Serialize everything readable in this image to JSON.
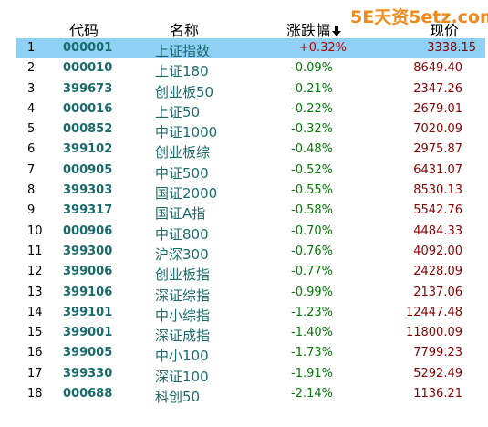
{
  "watermark": "5E天资5etz.com",
  "columns": {
    "code": "代码",
    "name": "名称",
    "change": "涨跌幅",
    "price": "现价"
  },
  "sort_icon": "arrow-down-icon",
  "colors": {
    "selected_row": "#8fd0f5",
    "code_text": "#1a6b6b",
    "negative": "#0a7a0a",
    "positive": "#c00000",
    "price": "#8b0000",
    "watermark": "#f08a1c"
  },
  "rows": [
    {
      "idx": "1",
      "code": "000001",
      "name": "上证指数",
      "change": "+0.32%",
      "price": "3338.15",
      "selected": true
    },
    {
      "idx": "2",
      "code": "000010",
      "name": "上证180",
      "change": "-0.09%",
      "price": "8649.40"
    },
    {
      "idx": "3",
      "code": "399673",
      "name": "创业板50",
      "change": "-0.21%",
      "price": "2347.26"
    },
    {
      "idx": "4",
      "code": "000016",
      "name": "上证50",
      "change": "-0.22%",
      "price": "2679.01"
    },
    {
      "idx": "5",
      "code": "000852",
      "name": "中证1000",
      "change": "-0.32%",
      "price": "7020.09"
    },
    {
      "idx": "6",
      "code": "399102",
      "name": "创业板综",
      "change": "-0.48%",
      "price": "2975.87"
    },
    {
      "idx": "7",
      "code": "000905",
      "name": "中证500",
      "change": "-0.52%",
      "price": "6431.07"
    },
    {
      "idx": "8",
      "code": "399303",
      "name": "国证2000",
      "change": "-0.55%",
      "price": "8530.13"
    },
    {
      "idx": "9",
      "code": "399317",
      "name": "国证A指",
      "change": "-0.58%",
      "price": "5542.76"
    },
    {
      "idx": "10",
      "code": "000906",
      "name": "中证800",
      "change": "-0.70%",
      "price": "4484.33"
    },
    {
      "idx": "11",
      "code": "399300",
      "name": "沪深300",
      "change": "-0.76%",
      "price": "4092.00"
    },
    {
      "idx": "12",
      "code": "399006",
      "name": "创业板指",
      "change": "-0.77%",
      "price": "2428.09"
    },
    {
      "idx": "13",
      "code": "399106",
      "name": "深证综指",
      "change": "-0.99%",
      "price": "2137.06"
    },
    {
      "idx": "14",
      "code": "399101",
      "name": "中小综指",
      "change": "-1.23%",
      "price": "12447.48"
    },
    {
      "idx": "15",
      "code": "399001",
      "name": "深证成指",
      "change": "-1.40%",
      "price": "11800.09"
    },
    {
      "idx": "16",
      "code": "399005",
      "name": "中小100",
      "change": "-1.73%",
      "price": "7799.23"
    },
    {
      "idx": "17",
      "code": "399330",
      "name": "深证100",
      "change": "-1.91%",
      "price": "5292.49"
    },
    {
      "idx": "18",
      "code": "000688",
      "name": "科创50",
      "change": "-2.14%",
      "price": "1136.21"
    }
  ]
}
